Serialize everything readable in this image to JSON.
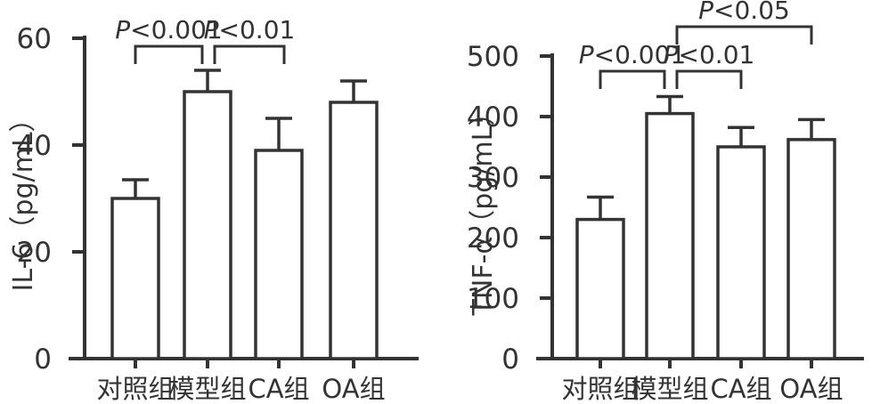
{
  "figure": {
    "background": "#ffffff",
    "ink_color": "#333333",
    "bar_fill": "#ffffff"
  },
  "chart_data": [
    {
      "type": "bar",
      "title": "",
      "xlabel": "",
      "ylabel": "IL-6（pg/mL）",
      "categories": [
        "对照组",
        "模型组",
        "CA组",
        "OA组"
      ],
      "values": [
        30,
        50,
        39,
        48
      ],
      "errors": [
        3.5,
        4,
        6,
        4
      ],
      "error_direction": "upper-only",
      "ylim": [
        0,
        60
      ],
      "yticks": [
        0,
        20,
        40,
        60
      ],
      "grid": false,
      "legend": "none",
      "bar_color": "#ffffff",
      "bar_edge_color": "#333333",
      "significance": [
        {
          "from": 0,
          "to": 1,
          "from_group": "对照组",
          "to_group": "模型组",
          "label": "P<0.001",
          "row": 0
        },
        {
          "from": 1,
          "to": 2,
          "from_group": "模型组",
          "to_group": "CA组",
          "label": "P<0.01",
          "row": 0
        }
      ]
    },
    {
      "type": "bar",
      "title": "",
      "xlabel": "",
      "ylabel": "TNF-α（pg/mL）",
      "categories": [
        "对照组",
        "模型组",
        "CA组",
        "OA组"
      ],
      "values": [
        230,
        405,
        350,
        362
      ],
      "errors": [
        37,
        28,
        32,
        33
      ],
      "error_direction": "upper-only",
      "ylim": [
        0,
        500
      ],
      "yticks": [
        0,
        100,
        200,
        300,
        400,
        500
      ],
      "grid": false,
      "legend": "none",
      "bar_color": "#ffffff",
      "bar_edge_color": "#333333",
      "significance": [
        {
          "from": 0,
          "to": 1,
          "from_group": "对照组",
          "to_group": "模型组",
          "label": "P<0.001",
          "row": 0
        },
        {
          "from": 1,
          "to": 2,
          "from_group": "模型组",
          "to_group": "CA组",
          "label": "P<0.01",
          "row": 0
        },
        {
          "from": 1,
          "to": 3,
          "from_group": "模型组",
          "to_group": "OA组",
          "label": "P<0.05",
          "row": 1
        }
      ]
    }
  ]
}
